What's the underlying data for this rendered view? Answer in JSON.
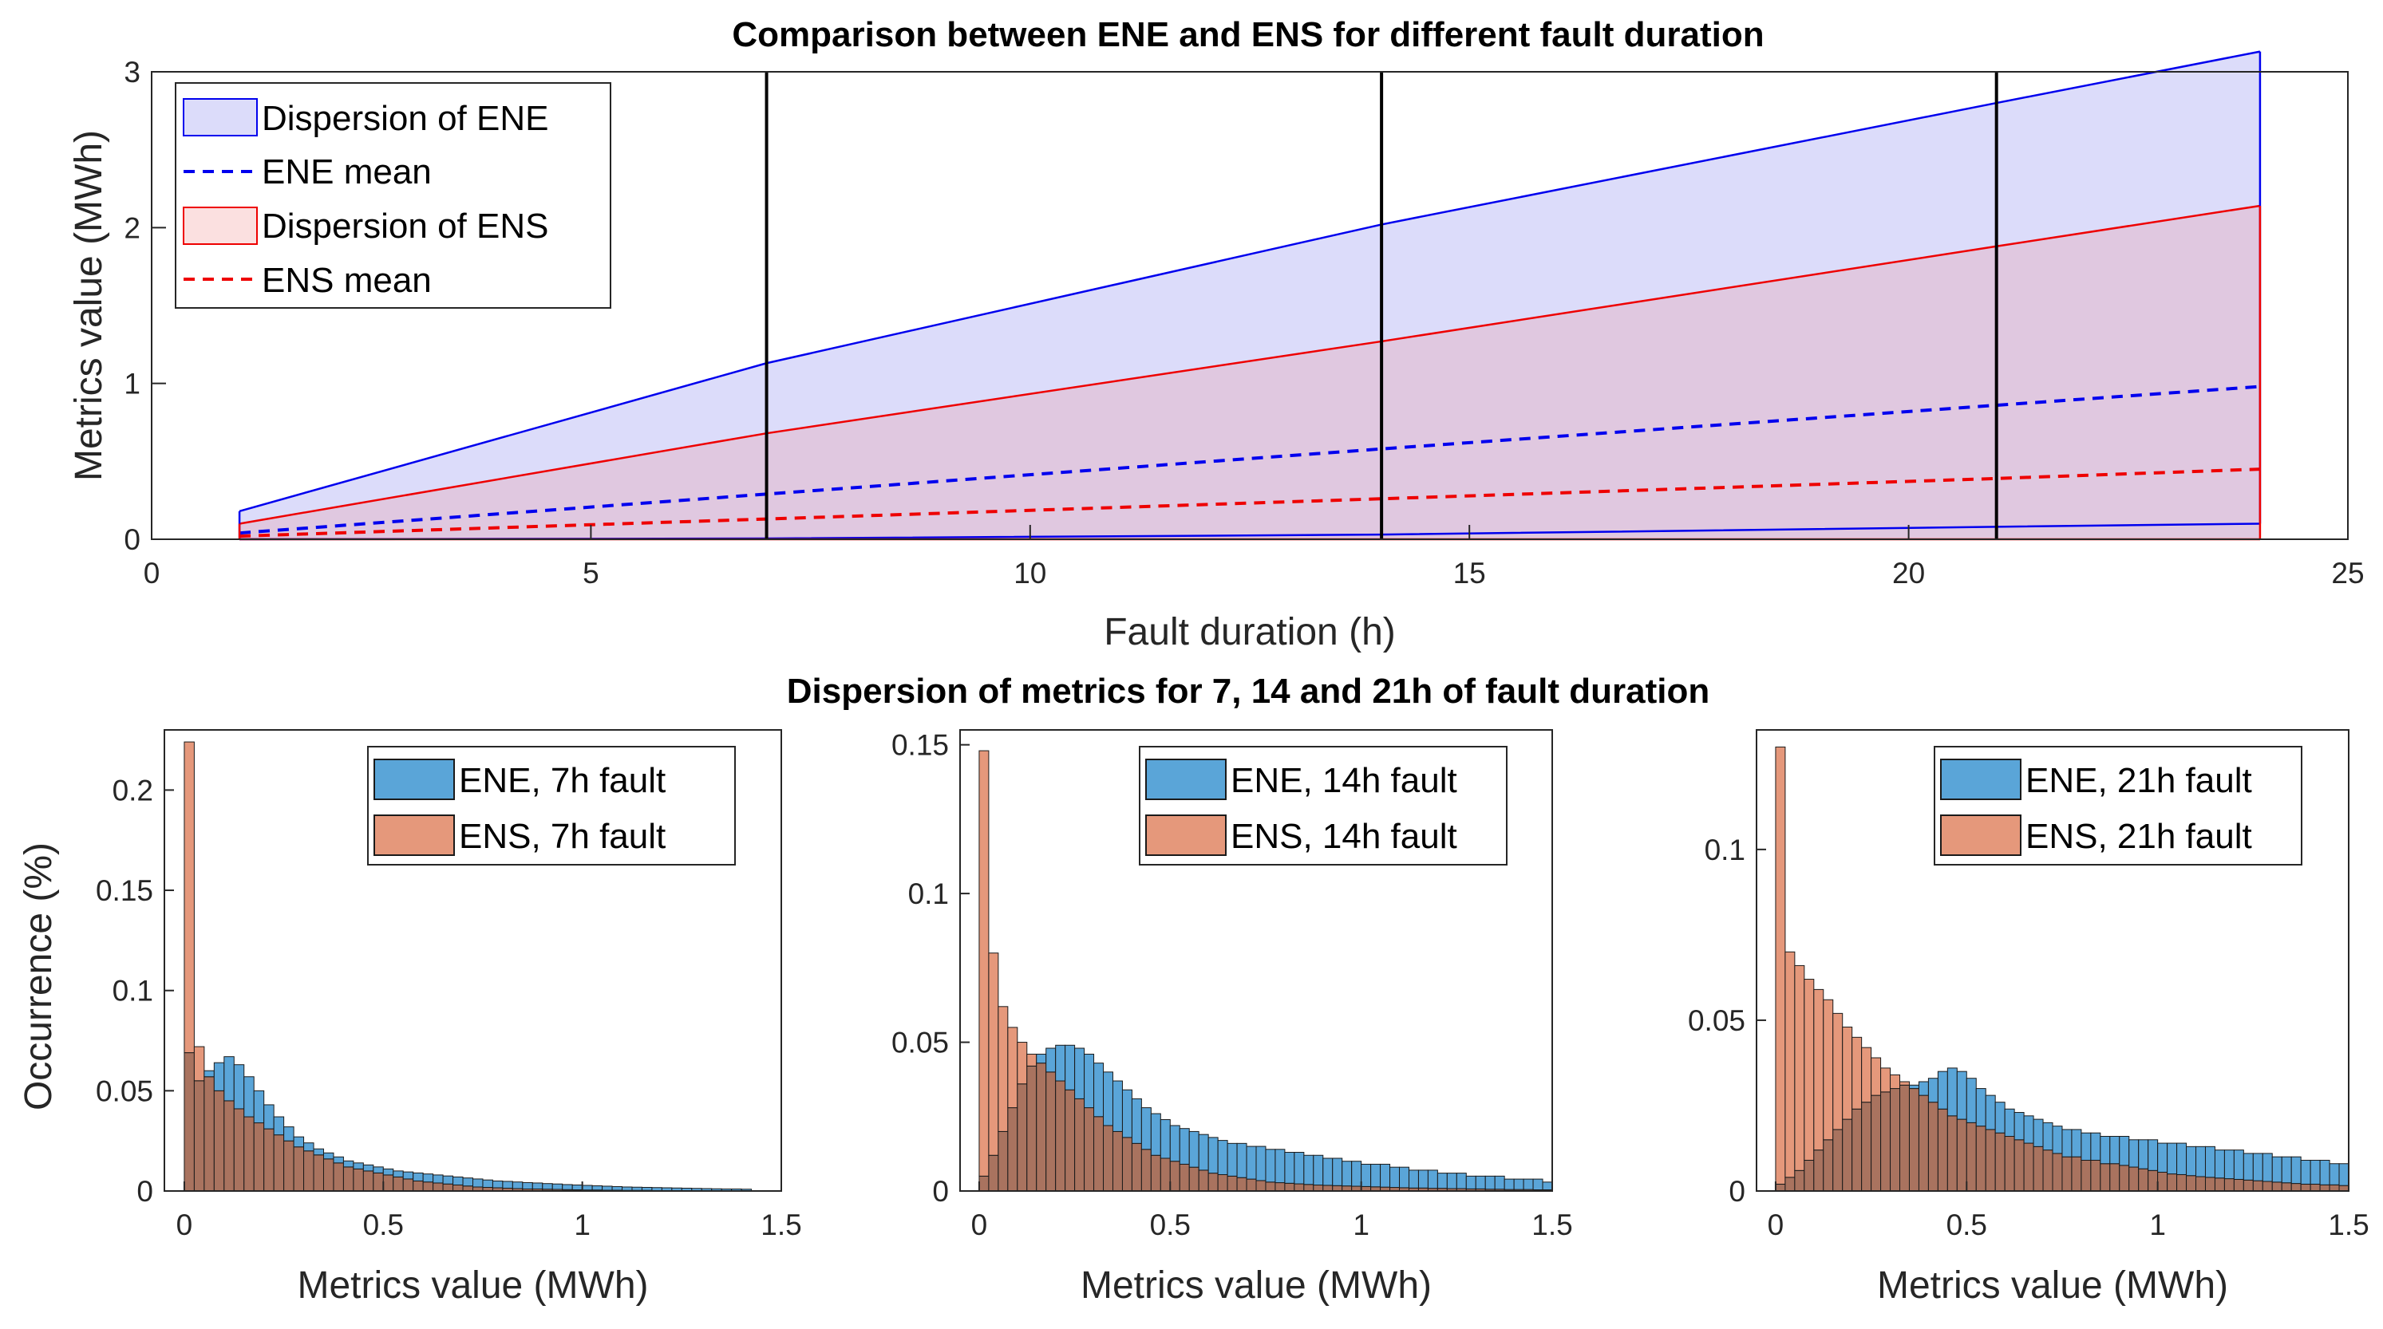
{
  "colors": {
    "ene_line": "#0000ee",
    "ens_line": "#ee0000",
    "ene_fill": "#dcdcfa",
    "ens_fill_overlap": "#e0c8e0",
    "ene_bar": "#5aa5d8",
    "ens_bar": "#e5987b",
    "overlap_bar": "#a9735f",
    "vline": "#000000"
  },
  "chart_data": [
    {
      "type": "area",
      "title": "Comparison between ENE and ENS for different fault duration",
      "xlabel": "Fault duration (h)",
      "ylabel": "Metrics value (MWh)",
      "xlim": [
        0,
        25
      ],
      "ylim": [
        0,
        3
      ],
      "xticks": [
        0,
        5,
        10,
        15,
        20,
        25
      ],
      "yticks": [
        0,
        1,
        2,
        3
      ],
      "x": [
        1,
        7,
        14,
        21,
        24
      ],
      "series": [
        {
          "name": "Dispersion of ENE",
          "kind": "band",
          "upper": [
            0.18,
            1.13,
            2.02,
            2.8,
            3.13
          ],
          "lower": [
            0.0,
            0.005,
            0.03,
            0.08,
            0.1
          ]
        },
        {
          "name": "ENE mean",
          "kind": "dashed",
          "values": [
            0.04,
            0.29,
            0.58,
            0.86,
            0.98
          ]
        },
        {
          "name": "Dispersion of ENS",
          "kind": "band",
          "upper": [
            0.1,
            0.68,
            1.27,
            1.88,
            2.14
          ],
          "lower": [
            0.0,
            0.0,
            0.0,
            0.0,
            0.0
          ]
        },
        {
          "name": "ENS mean",
          "kind": "dashed",
          "values": [
            0.02,
            0.13,
            0.26,
            0.39,
            0.45
          ]
        }
      ],
      "vlines": [
        7,
        14,
        21
      ],
      "legend_position": "top-left"
    },
    {
      "type": "bar",
      "suptitle": "Dispersion of metrics for 7, 14 and 21h of fault duration",
      "xlabel": "Metrics value (MWh)",
      "ylabel": "Occurrence (%)",
      "xlim": [
        -0.05,
        1.5
      ],
      "ylim": [
        0,
        0.23
      ],
      "xticks": [
        "0",
        "0.5",
        "1",
        "1.5"
      ],
      "yticks": [
        "0",
        "0.05",
        "0.1",
        "0.15",
        "0.2"
      ],
      "bin_start": 0,
      "bin_width": 0.025,
      "series": [
        {
          "name": "ENE, 7h fault",
          "values": [
            0.069,
            0.055,
            0.06,
            0.064,
            0.067,
            0.063,
            0.057,
            0.05,
            0.043,
            0.037,
            0.032,
            0.027,
            0.024,
            0.021,
            0.019,
            0.017,
            0.015,
            0.014,
            0.013,
            0.012,
            0.011,
            0.01,
            0.0095,
            0.009,
            0.0085,
            0.008,
            0.0075,
            0.007,
            0.0065,
            0.006,
            0.0055,
            0.005,
            0.0048,
            0.0045,
            0.0042,
            0.004,
            0.0037,
            0.0035,
            0.0032,
            0.003,
            0.0028,
            0.0026,
            0.0024,
            0.0022,
            0.002,
            0.0019,
            0.0018,
            0.0017,
            0.0016,
            0.0015,
            0.0014,
            0.0013,
            0.0012,
            0.0011,
            0.001,
            0.001,
            0.0009
          ]
        },
        {
          "name": "ENS, 7h fault",
          "values": [
            0.224,
            0.072,
            0.057,
            0.05,
            0.045,
            0.041,
            0.037,
            0.034,
            0.031,
            0.028,
            0.025,
            0.022,
            0.02,
            0.018,
            0.016,
            0.014,
            0.012,
            0.011,
            0.01,
            0.009,
            0.008,
            0.007,
            0.006,
            0.005,
            0.0045,
            0.004,
            0.0035,
            0.003,
            0.0025,
            0.002,
            0.0018,
            0.0016,
            0.0014,
            0.0012,
            0.001,
            0.001,
            0.0009,
            0.0008,
            0.0007,
            0.0006,
            0.0005,
            0.0005,
            0.0004,
            0.0004,
            0.0003,
            0.0003,
            0.0003,
            0.0002,
            0.0002,
            0.0002,
            0.0002,
            0.0001,
            0.0001,
            0.0001,
            0.0001,
            0.0001,
            0.0001
          ]
        }
      ],
      "legend_position": "top-right"
    },
    {
      "type": "bar",
      "xlabel": "Metrics value (MWh)",
      "xlim": [
        -0.05,
        1.5
      ],
      "ylim": [
        0,
        0.155
      ],
      "xticks": [
        "0",
        "0.5",
        "1",
        "1.5"
      ],
      "yticks": [
        "0",
        "0.05",
        "0.1",
        "0.15"
      ],
      "bin_start": 0,
      "bin_width": 0.025,
      "series": [
        {
          "name": "ENE, 14h fault",
          "values": [
            0.005,
            0.012,
            0.02,
            0.028,
            0.036,
            0.042,
            0.046,
            0.048,
            0.049,
            0.049,
            0.048,
            0.046,
            0.043,
            0.04,
            0.037,
            0.034,
            0.031,
            0.028,
            0.026,
            0.024,
            0.022,
            0.021,
            0.02,
            0.019,
            0.018,
            0.017,
            0.016,
            0.016,
            0.015,
            0.015,
            0.014,
            0.014,
            0.013,
            0.013,
            0.012,
            0.012,
            0.011,
            0.011,
            0.01,
            0.01,
            0.009,
            0.009,
            0.009,
            0.008,
            0.008,
            0.007,
            0.007,
            0.007,
            0.006,
            0.006,
            0.006,
            0.005,
            0.005,
            0.005,
            0.005,
            0.004,
            0.004,
            0.004,
            0.004,
            0.003
          ]
        },
        {
          "name": "ENS, 14h fault",
          "values": [
            0.148,
            0.08,
            0.062,
            0.055,
            0.05,
            0.046,
            0.043,
            0.04,
            0.037,
            0.034,
            0.031,
            0.028,
            0.025,
            0.022,
            0.02,
            0.018,
            0.016,
            0.014,
            0.012,
            0.011,
            0.01,
            0.009,
            0.008,
            0.007,
            0.006,
            0.0055,
            0.005,
            0.0045,
            0.004,
            0.0035,
            0.003,
            0.0028,
            0.0026,
            0.0024,
            0.0022,
            0.002,
            0.0019,
            0.0018,
            0.0017,
            0.0016,
            0.0015,
            0.0014,
            0.0013,
            0.0012,
            0.0011,
            0.001,
            0.001,
            0.0009,
            0.0009,
            0.0008,
            0.0008,
            0.0007,
            0.0007,
            0.0006,
            0.0006,
            0.0005,
            0.0005,
            0.0005,
            0.0004,
            0.0004
          ]
        }
      ],
      "legend_position": "top-right"
    },
    {
      "type": "bar",
      "xlabel": "Metrics value (MWh)",
      "xlim": [
        -0.05,
        1.5
      ],
      "ylim": [
        0,
        0.135
      ],
      "xticks": [
        "0",
        "0.5",
        "1",
        "1.5"
      ],
      "yticks": [
        "0",
        "0.05",
        "0.1"
      ],
      "bin_start": 0,
      "bin_width": 0.025,
      "series": [
        {
          "name": "ENE, 21h fault",
          "values": [
            0.002,
            0.004,
            0.006,
            0.009,
            0.012,
            0.015,
            0.018,
            0.021,
            0.024,
            0.026,
            0.028,
            0.029,
            0.03,
            0.031,
            0.031,
            0.032,
            0.033,
            0.035,
            0.036,
            0.035,
            0.033,
            0.03,
            0.028,
            0.026,
            0.024,
            0.023,
            0.022,
            0.021,
            0.02,
            0.019,
            0.018,
            0.018,
            0.017,
            0.017,
            0.016,
            0.016,
            0.016,
            0.015,
            0.015,
            0.015,
            0.014,
            0.014,
            0.014,
            0.013,
            0.013,
            0.013,
            0.012,
            0.012,
            0.012,
            0.011,
            0.011,
            0.011,
            0.01,
            0.01,
            0.01,
            0.009,
            0.009,
            0.009,
            0.008,
            0.008
          ]
        },
        {
          "name": "ENS, 21h fault",
          "values": [
            0.13,
            0.07,
            0.066,
            0.062,
            0.059,
            0.056,
            0.052,
            0.048,
            0.045,
            0.042,
            0.039,
            0.036,
            0.034,
            0.032,
            0.03,
            0.028,
            0.026,
            0.024,
            0.022,
            0.021,
            0.02,
            0.019,
            0.018,
            0.017,
            0.016,
            0.015,
            0.014,
            0.013,
            0.012,
            0.011,
            0.01,
            0.01,
            0.009,
            0.009,
            0.008,
            0.008,
            0.0075,
            0.007,
            0.0065,
            0.006,
            0.0055,
            0.005,
            0.0048,
            0.0045,
            0.0042,
            0.004,
            0.0038,
            0.0036,
            0.0034,
            0.0032,
            0.003,
            0.0028,
            0.0026,
            0.0024,
            0.0022,
            0.002,
            0.002,
            0.0018,
            0.0018,
            0.0016
          ]
        }
      ],
      "legend_position": "top-right"
    }
  ]
}
